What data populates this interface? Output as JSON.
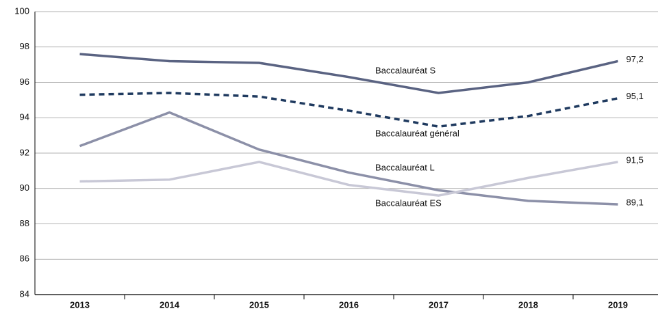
{
  "chart_data": {
    "type": "line",
    "categories": [
      "2013",
      "2014",
      "2015",
      "2016",
      "2017",
      "2018",
      "2019"
    ],
    "series": [
      {
        "name": "Baccalauréat S",
        "color": "#5a6382",
        "dashed": false,
        "values": [
          97.6,
          97.2,
          97.1,
          96.3,
          95.4,
          96.0,
          97.2
        ],
        "value_labels": [
          null,
          null,
          null,
          null,
          null,
          null,
          "97,2"
        ]
      },
      {
        "name": "Baccalauréat général",
        "color": "#1f3a5f",
        "dashed": true,
        "values": [
          95.3,
          95.4,
          95.2,
          94.4,
          93.5,
          94.1,
          95.1
        ],
        "value_labels": [
          null,
          null,
          null,
          null,
          null,
          null,
          "95,1"
        ]
      },
      {
        "name": "Baccalauréat L",
        "color": "#8c90a8",
        "dashed": false,
        "values": [
          92.4,
          94.3,
          92.2,
          90.9,
          89.9,
          89.3,
          89.1
        ],
        "value_labels": [
          null,
          null,
          null,
          null,
          null,
          null,
          "89,1"
        ]
      },
      {
        "name": "Baccalauréat ES",
        "color": "#c8c8d6",
        "dashed": false,
        "values": [
          90.4,
          90.5,
          91.5,
          90.2,
          89.6,
          90.6,
          91.5
        ],
        "value_labels": [
          null,
          null,
          null,
          null,
          null,
          null,
          "91,5"
        ]
      }
    ],
    "ylim": [
      84,
      100
    ],
    "yticks": [
      84,
      86,
      88,
      90,
      92,
      94,
      96,
      98,
      100
    ],
    "grid": true
  }
}
